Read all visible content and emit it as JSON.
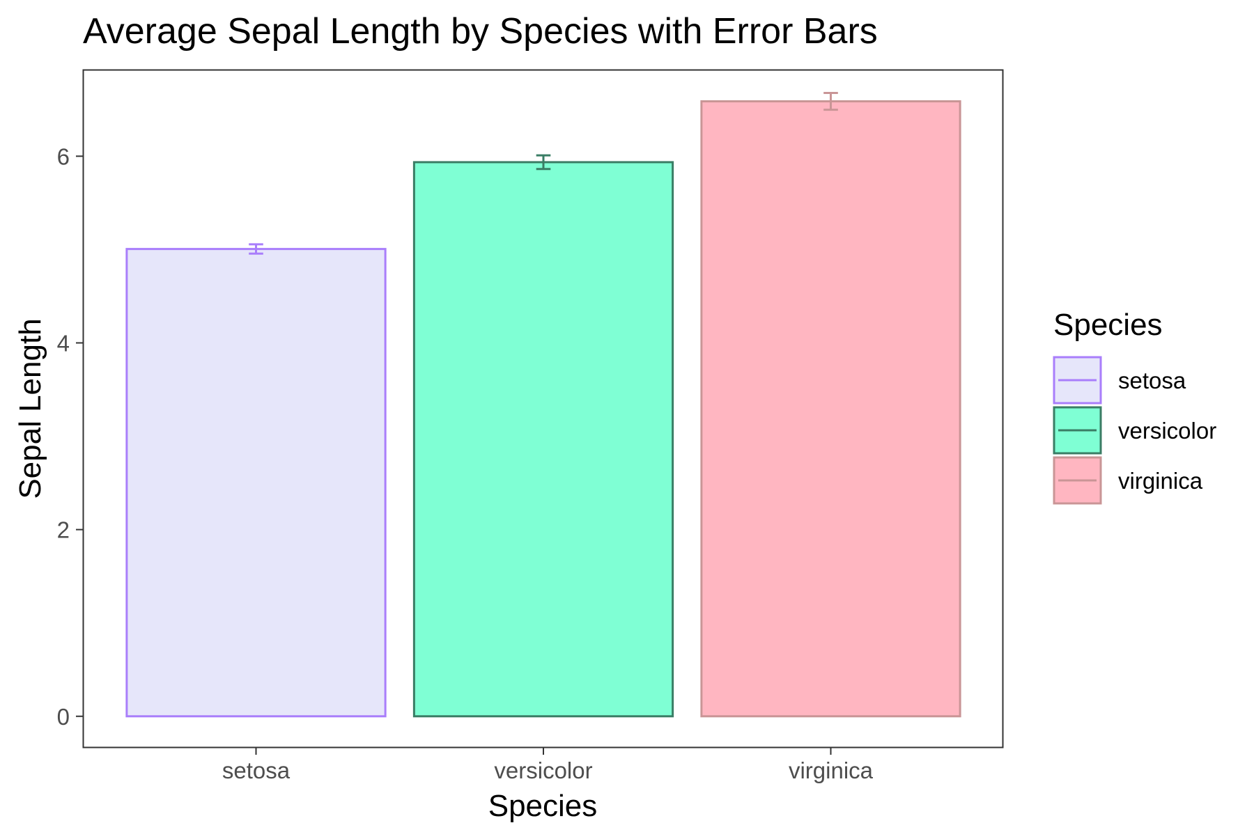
{
  "chart_data": {
    "type": "bar",
    "title": "Average Sepal Length by Species with Error Bars",
    "xlabel": "Species",
    "ylabel": "Sepal Length",
    "categories": [
      "setosa",
      "versicolor",
      "virginica"
    ],
    "values": [
      5.006,
      5.936,
      6.588
    ],
    "error": [
      0.05,
      0.073,
      0.09
    ],
    "ylim": [
      -0.33,
      6.92
    ],
    "yticks": [
      0,
      2,
      4,
      6
    ],
    "grid": false,
    "legend": {
      "title": "Species",
      "position": "right",
      "entries": [
        "setosa",
        "versicolor",
        "virginica"
      ]
    },
    "colors": {
      "setosa": {
        "fill": "#E6E6FA",
        "stroke": "#A97EFB"
      },
      "versicolor": {
        "fill": "#7FFFD4",
        "stroke": "#3A7D65"
      },
      "virginica": {
        "fill": "#FFB6C1",
        "stroke": "#C99596"
      }
    }
  }
}
